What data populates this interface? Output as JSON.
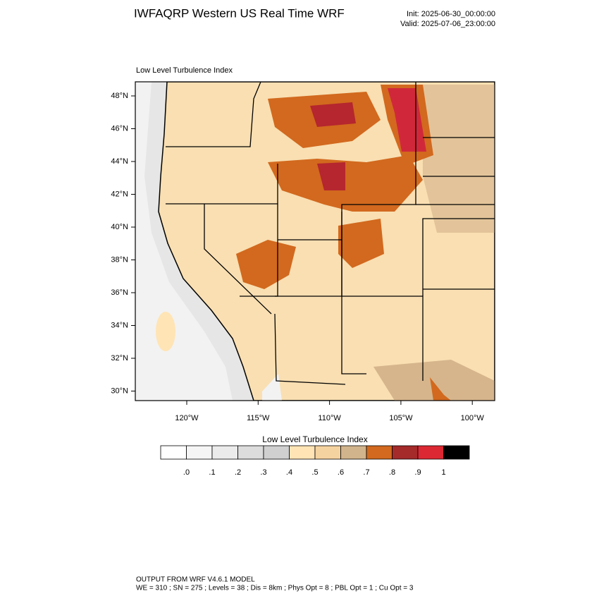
{
  "header": {
    "title": "IWFAQRP Western US Real Time WRF",
    "init": "Init: 2025-06-30_00:00:00",
    "valid": "Valid: 2025-07-06_23:00:00"
  },
  "map": {
    "title": "Low Level Turbulence Index",
    "lat_labels": [
      "48°N",
      "46°N",
      "44°N",
      "42°N",
      "40°N",
      "38°N",
      "36°N",
      "34°N",
      "32°N",
      "30°N"
    ],
    "lon_labels": [
      "120°W",
      "115°W",
      "110°W",
      "105°W",
      "100°W"
    ]
  },
  "colorbar": {
    "title": "Low Level Turbulence Index",
    "colors": [
      "#ffffff",
      "#f5f5f5",
      "#ebebeb",
      "#dcdcdc",
      "#d0d0d0",
      "#ffe4b5",
      "#f5d3a0",
      "#d2b48c",
      "#d2691e",
      "#a52a2a",
      "#dc2832",
      "#000000"
    ],
    "labels": [
      ".0",
      ".1",
      ".2",
      ".3",
      ".4",
      ".5",
      ".6",
      ".7",
      ".8",
      ".9",
      "1"
    ]
  },
  "footer": {
    "line1": "OUTPUT FROM WRF V4.6.1 MODEL",
    "line2": "WE = 310 ; SN = 275 ; Levels = 38 ; Dis = 8km ; Phys Opt = 8 ; PBL Opt = 1 ; Cu Opt = 3"
  }
}
